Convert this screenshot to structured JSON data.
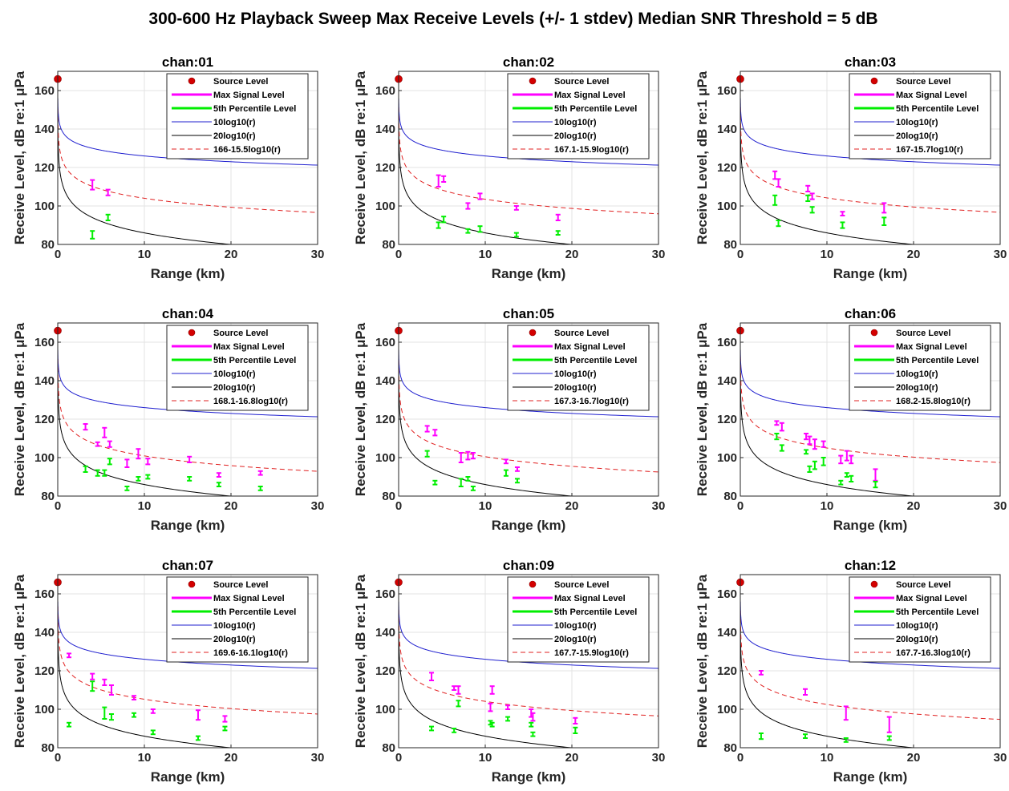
{
  "figure": {
    "title": "300-600 Hz Playback Sweep Max Receive Levels (+/- 1 stdev) Median SNR Threshold = 5 dB"
  },
  "colors": {
    "source": "#d40000",
    "max_signal": "#ff00ff",
    "p5": "#00ee00",
    "ten_log": "#1f1fcf",
    "twenty_log": "#000000",
    "fit": "#e02020",
    "grid": "#e3e3e3"
  },
  "chart_data": [
    {
      "type": "scatter",
      "title": "chan:01",
      "xlabel": "Range (km)",
      "ylabel": "Receive Level, dB re:1 μPa",
      "xlim": [
        0,
        30
      ],
      "ylim": [
        80,
        170
      ],
      "grid": true,
      "legend": "top-right",
      "xticks": [
        "0",
        "10",
        "20",
        "30"
      ],
      "yticks": [
        "80",
        "100",
        "120",
        "140",
        "160"
      ],
      "source_level": [
        0,
        166
      ],
      "fit_label": "166-15.5log10(r)",
      "fit": {
        "a": 166,
        "b": 15.5
      },
      "max_signal": [
        [
          4,
          111,
          2.5
        ],
        [
          5.8,
          107,
          1.5
        ]
      ],
      "p5": [
        [
          4,
          85,
          2
        ],
        [
          5.8,
          94,
          1.5
        ]
      ],
      "legend_labels": [
        "Source Level",
        "Max Signal Level",
        "5th Percentile Level",
        "10log10(r)",
        "20log10(r)",
        "166-15.5log10(r)"
      ]
    },
    {
      "type": "scatter",
      "title": "chan:02",
      "xlabel": "Range (km)",
      "ylabel": "Receive Level, dB re:1 μPa",
      "xlim": [
        0,
        30
      ],
      "ylim": [
        80,
        170
      ],
      "grid": true,
      "legend": "top-right",
      "xticks": [
        "0",
        "10",
        "20",
        "30"
      ],
      "yticks": [
        "80",
        "100",
        "120",
        "140",
        "160"
      ],
      "source_level": [
        0,
        166
      ],
      "fit_label": "167.1-15.9log10(r)",
      "fit": {
        "a": 167.1,
        "b": 15.9
      },
      "max_signal": [
        [
          4.6,
          113,
          3
        ],
        [
          5.2,
          114,
          1.5
        ],
        [
          8,
          100,
          1.5
        ],
        [
          9.4,
          105,
          1.5
        ],
        [
          13.6,
          99,
          1
        ],
        [
          18.4,
          94,
          1.5
        ]
      ],
      "p5": [
        [
          4.6,
          90,
          1.5
        ],
        [
          5.2,
          93,
          1.5
        ],
        [
          8,
          87,
          1
        ],
        [
          9.4,
          88,
          1.5
        ],
        [
          13.6,
          85,
          1
        ],
        [
          18.4,
          86,
          1
        ]
      ],
      "legend_labels": [
        "Source Level",
        "Max Signal Level",
        "5th Percentile Level",
        "10log10(r)",
        "20log10(r)",
        "167.1-15.9log10(r)"
      ]
    },
    {
      "type": "scatter",
      "title": "chan:03",
      "xlabel": "Range (km)",
      "ylabel": "Receive Level, dB re:1 μPa",
      "xlim": [
        0,
        30
      ],
      "ylim": [
        80,
        170
      ],
      "grid": true,
      "legend": "top-right",
      "xticks": [
        "0",
        "10",
        "20",
        "30"
      ],
      "yticks": [
        "80",
        "100",
        "120",
        "140",
        "160"
      ],
      "source_level": [
        0,
        166
      ],
      "fit_label": "167-15.7log10(r)",
      "fit": {
        "a": 167,
        "b": 15.7
      },
      "max_signal": [
        [
          4,
          116,
          2
        ],
        [
          4.4,
          112,
          2
        ],
        [
          7.8,
          109,
          1.5
        ],
        [
          8.3,
          105,
          1.5
        ],
        [
          11.8,
          96,
          1
        ],
        [
          16.6,
          99,
          2.5
        ]
      ],
      "p5": [
        [
          4,
          103,
          2.5
        ],
        [
          4.4,
          91,
          1.5
        ],
        [
          7.8,
          104,
          1.5
        ],
        [
          8.3,
          98,
          1.5
        ],
        [
          11.8,
          90,
          1.5
        ],
        [
          16.6,
          92,
          2
        ]
      ],
      "legend_labels": [
        "Source Level",
        "Max Signal Level",
        "5th Percentile Level",
        "10log10(r)",
        "20log10(r)",
        "167-15.7log10(r)"
      ]
    },
    {
      "type": "scatter",
      "title": "chan:04",
      "xlabel": "Range (km)",
      "ylabel": "Receive Level, dB re:1 μPa",
      "xlim": [
        0,
        30
      ],
      "ylim": [
        80,
        170
      ],
      "grid": true,
      "legend": "top-right",
      "xticks": [
        "0",
        "10",
        "20",
        "30"
      ],
      "yticks": [
        "80",
        "100",
        "120",
        "140",
        "160"
      ],
      "source_level": [
        0,
        166
      ],
      "fit_label": "168.1-16.8log10(r)",
      "fit": {
        "a": 168.1,
        "b": 16.8
      },
      "max_signal": [
        [
          3.2,
          116,
          1.5
        ],
        [
          4.6,
          107,
          1
        ],
        [
          5.4,
          113,
          2.5
        ],
        [
          6,
          107,
          1.5
        ],
        [
          8,
          97,
          2
        ],
        [
          9.3,
          102,
          2.5
        ],
        [
          10.4,
          98,
          1.5
        ],
        [
          15.2,
          99,
          1.5
        ],
        [
          18.6,
          91,
          1
        ],
        [
          23.4,
          92,
          1
        ]
      ],
      "p5": [
        [
          3.2,
          94,
          1.5
        ],
        [
          4.6,
          92,
          1.5
        ],
        [
          5.4,
          92,
          1.5
        ],
        [
          6,
          98,
          1.5
        ],
        [
          8,
          84,
          1
        ],
        [
          9.3,
          89,
          1
        ],
        [
          10.4,
          90,
          1
        ],
        [
          15.2,
          89,
          1
        ],
        [
          18.6,
          86,
          1
        ],
        [
          23.4,
          84,
          1
        ]
      ],
      "legend_labels": [
        "Source Level",
        "Max Signal Level",
        "5th Percentile Level",
        "10log10(r)",
        "20log10(r)",
        "168.1-16.8log10(r)"
      ]
    },
    {
      "type": "scatter",
      "title": "chan:05",
      "xlabel": "Range (km)",
      "ylabel": "Receive Level, dB re:1 μPa",
      "xlim": [
        0,
        30
      ],
      "ylim": [
        80,
        170
      ],
      "grid": true,
      "legend": "top-right",
      "xticks": [
        "0",
        "10",
        "20",
        "30"
      ],
      "yticks": [
        "80",
        "100",
        "120",
        "140",
        "160"
      ],
      "source_level": [
        0,
        166
      ],
      "fit_label": "167.3-16.7log10(r)",
      "fit": {
        "a": 167.3,
        "b": 16.7
      },
      "max_signal": [
        [
          3.3,
          115,
          1.5
        ],
        [
          4.2,
          113,
          1.5
        ],
        [
          7.2,
          100,
          2.5
        ],
        [
          8,
          101,
          2
        ],
        [
          8.6,
          101,
          1.5
        ],
        [
          12.4,
          98,
          1
        ],
        [
          13.7,
          94,
          1
        ]
      ],
      "p5": [
        [
          3.3,
          102,
          1.5
        ],
        [
          4.2,
          87,
          1
        ],
        [
          7.2,
          87,
          2
        ],
        [
          8,
          89,
          1
        ],
        [
          8.6,
          84,
          1
        ],
        [
          12.4,
          92,
          1.5
        ],
        [
          13.7,
          88,
          1
        ]
      ],
      "legend_labels": [
        "Source Level",
        "Max Signal Level",
        "5th Percentile Level",
        "10log10(r)",
        "20log10(r)",
        "167.3-16.7log10(r)"
      ]
    },
    {
      "type": "scatter",
      "title": "chan:06",
      "xlabel": "Range (km)",
      "ylabel": "Receive Level, dB re:1 μPa",
      "xlim": [
        0,
        30
      ],
      "ylim": [
        80,
        170
      ],
      "grid": true,
      "legend": "top-right",
      "xticks": [
        "0",
        "10",
        "20",
        "30"
      ],
      "yticks": [
        "80",
        "100",
        "120",
        "140",
        "160"
      ],
      "source_level": [
        0,
        166
      ],
      "fit_label": "168.2-15.8log10(r)",
      "fit": {
        "a": 168.2,
        "b": 15.8
      },
      "max_signal": [
        [
          4.2,
          118,
          1
        ],
        [
          4.8,
          116,
          2
        ],
        [
          7.6,
          111,
          1.5
        ],
        [
          8,
          109,
          2
        ],
        [
          8.6,
          107,
          2.5
        ],
        [
          9.6,
          107,
          1.5
        ],
        [
          11.6,
          99,
          2
        ],
        [
          12.3,
          101,
          2.5
        ],
        [
          12.8,
          99,
          2
        ],
        [
          15.6,
          91,
          3
        ]
      ],
      "p5": [
        [
          4.2,
          111,
          1.5
        ],
        [
          4.8,
          105,
          1.5
        ],
        [
          7.6,
          103,
          1
        ],
        [
          8,
          94,
          1.5
        ],
        [
          8.6,
          96,
          2
        ],
        [
          9.6,
          98,
          2
        ],
        [
          11.6,
          87,
          1
        ],
        [
          12.3,
          91,
          1
        ],
        [
          12.8,
          89,
          1.5
        ],
        [
          15.6,
          86,
          1.5
        ]
      ],
      "legend_labels": [
        "Source Level",
        "Max Signal Level",
        "5th Percentile Level",
        "10log10(r)",
        "20log10(r)",
        "168.2-15.8log10(r)"
      ]
    },
    {
      "type": "scatter",
      "title": "chan:07",
      "xlabel": "Range (km)",
      "ylabel": "Receive Level, dB re:1 μPa",
      "xlim": [
        0,
        30
      ],
      "ylim": [
        80,
        170
      ],
      "grid": true,
      "legend": "top-right",
      "xticks": [
        "0",
        "10",
        "20",
        "30"
      ],
      "yticks": [
        "80",
        "100",
        "120",
        "140",
        "160"
      ],
      "source_level": [
        0,
        166
      ],
      "fit_label": "169.6-16.1log10(r)",
      "fit": {
        "a": 169.6,
        "b": 16.1
      },
      "max_signal": [
        [
          1.3,
          128,
          1
        ],
        [
          4,
          117,
          1.5
        ],
        [
          5.4,
          114,
          1.5
        ],
        [
          6.2,
          110,
          2.5
        ],
        [
          8.8,
          106,
          1
        ],
        [
          11,
          99,
          1
        ],
        [
          16.2,
          97,
          2.5
        ],
        [
          19.3,
          95,
          1.5
        ]
      ],
      "p5": [
        [
          1.3,
          92,
          1
        ],
        [
          4,
          112,
          2.5
        ],
        [
          5.4,
          98,
          3
        ],
        [
          6.2,
          96,
          1.5
        ],
        [
          8.8,
          97,
          1
        ],
        [
          11,
          88,
          1
        ],
        [
          16.2,
          85,
          1
        ],
        [
          19.3,
          90,
          1
        ]
      ],
      "legend_labels": [
        "Source Level",
        "Max Signal Level",
        "5th Percentile Level",
        "10log10(r)",
        "20log10(r)",
        "169.6-16.1log10(r)"
      ]
    },
    {
      "type": "scatter",
      "title": "chan:09",
      "xlabel": "Range (km)",
      "ylabel": "Receive Level, dB re:1 μPa",
      "xlim": [
        0,
        30
      ],
      "ylim": [
        80,
        170
      ],
      "grid": true,
      "legend": "top-right",
      "xticks": [
        "0",
        "10",
        "20",
        "30"
      ],
      "yticks": [
        "80",
        "100",
        "120",
        "140",
        "160"
      ],
      "source_level": [
        0,
        166
      ],
      "fit_label": "167.7-15.9log10(r)",
      "fit": {
        "a": 167.7,
        "b": 15.9
      },
      "max_signal": [
        [
          3.8,
          117,
          2
        ],
        [
          6.4,
          111,
          1
        ],
        [
          6.9,
          110,
          2
        ],
        [
          10.6,
          101,
          2
        ],
        [
          10.8,
          110,
          2
        ],
        [
          12.6,
          101,
          1
        ],
        [
          15.3,
          98,
          2
        ],
        [
          15.5,
          96,
          2
        ],
        [
          20.4,
          94,
          1.5
        ]
      ],
      "p5": [
        [
          3.8,
          90,
          1
        ],
        [
          6.4,
          89,
          1
        ],
        [
          6.9,
          103,
          1.5
        ],
        [
          10.6,
          93,
          1
        ],
        [
          10.8,
          92,
          1
        ],
        [
          12.6,
          95,
          1
        ],
        [
          15.3,
          92,
          1
        ],
        [
          15.5,
          87,
          1
        ],
        [
          20.4,
          89,
          1.5
        ]
      ],
      "legend_labels": [
        "Source Level",
        "Max Signal Level",
        "5th Percentile Level",
        "10log10(r)",
        "20log10(r)",
        "167.7-15.9log10(r)"
      ]
    },
    {
      "type": "scatter",
      "title": "chan:12",
      "xlabel": "Range (km)",
      "ylabel": "Receive Level, dB re:1 μPa",
      "xlim": [
        0,
        30
      ],
      "ylim": [
        80,
        170
      ],
      "grid": true,
      "legend": "top-right",
      "xticks": [
        "0",
        "10",
        "20",
        "30"
      ],
      "yticks": [
        "80",
        "100",
        "120",
        "140",
        "160"
      ],
      "source_level": [
        0,
        166
      ],
      "fit_label": "167.7-16.3log10(r)",
      "fit": {
        "a": 167.7,
        "b": 16.3
      },
      "max_signal": [
        [
          2.4,
          119,
          1
        ],
        [
          7.5,
          109,
          1.5
        ],
        [
          12.2,
          98,
          3.5
        ],
        [
          17.2,
          92,
          4
        ]
      ],
      "p5": [
        [
          2.4,
          86,
          1.5
        ],
        [
          7.5,
          86,
          1
        ],
        [
          12.2,
          84,
          1
        ],
        [
          17.2,
          85,
          1
        ]
      ],
      "legend_labels": [
        "Source Level",
        "Max Signal Level",
        "5th Percentile Level",
        "10log10(r)",
        "20log10(r)",
        "167.7-16.3log10(r)"
      ]
    }
  ]
}
